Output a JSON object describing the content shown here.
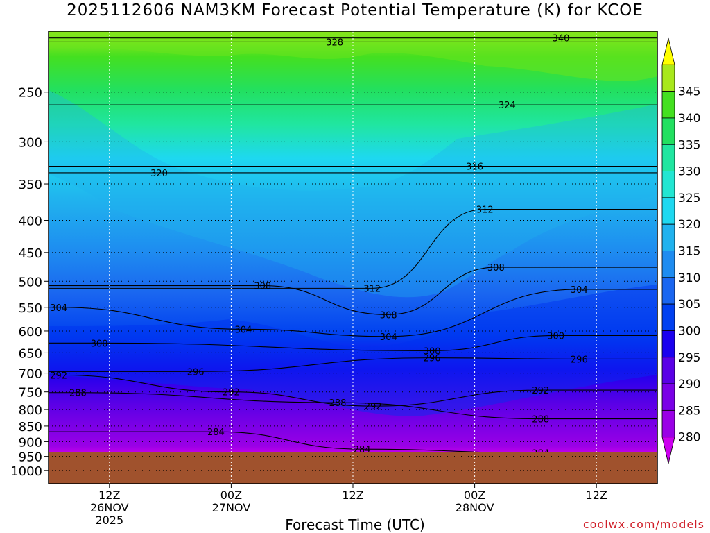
{
  "title": "2025112606 NAM3KM Forecast Potential Temperature (K) for KCOE",
  "credit": "coolwx.com/models",
  "chart_data": {
    "type": "heatmap",
    "title": "2025112606 NAM3KM Forecast Potential Temperature (K) for KCOE",
    "xlabel": "Forecast Time (UTC)",
    "ylabel": "",
    "x_range": [
      "2025-11-26 06Z",
      "2025-11-28 18Z"
    ],
    "x_ticks": [
      {
        "label": "12Z",
        "sub": [
          "26NOV",
          "2025"
        ],
        "hour": 6
      },
      {
        "label": "00Z",
        "sub": [
          "27NOV"
        ],
        "hour": 18
      },
      {
        "label": "12Z",
        "sub": [],
        "hour": 30
      },
      {
        "label": "00Z",
        "sub": [
          "28NOV"
        ],
        "hour": 42
      },
      {
        "label": "12Z",
        "sub": [],
        "hour": 54
      }
    ],
    "y_range": [
      1050,
      200
    ],
    "y_ticks": [
      250,
      300,
      350,
      400,
      450,
      500,
      550,
      600,
      650,
      700,
      750,
      800,
      850,
      900,
      950,
      1000
    ],
    "y_scale": "log-pressure",
    "ground_pressure": 950,
    "colorbar": {
      "ticks": [
        280,
        285,
        290,
        295,
        300,
        305,
        310,
        315,
        320,
        325,
        330,
        335,
        340,
        345
      ],
      "colors": [
        "#cc00ee",
        "#9a00e6",
        "#7a00e6",
        "#5a00e6",
        "#1a00ee",
        "#0040f0",
        "#1a66f0",
        "#1e8cf0",
        "#20b2ee",
        "#1ed8f0",
        "#22e6d2",
        "#20e6a0",
        "#22e060",
        "#44e020",
        "#a8e81c",
        "#ffff00"
      ]
    },
    "contour_labels": [
      {
        "value": "328",
        "hour": 28.2,
        "p": 208
      },
      {
        "value": "340",
        "hour": 50.5,
        "p": 205
      },
      {
        "value": "324",
        "hour": 45.2,
        "p": 262
      },
      {
        "value": "320",
        "hour": 10.9,
        "p": 336
      },
      {
        "value": "316",
        "hour": 42.0,
        "p": 328
      },
      {
        "value": "312",
        "hour": 43.0,
        "p": 384
      },
      {
        "value": "312",
        "hour": 31.9,
        "p": 513
      },
      {
        "value": "308",
        "hour": 21.1,
        "p": 508
      },
      {
        "value": "308",
        "hour": 44.1,
        "p": 475
      },
      {
        "value": "308",
        "hour": 33.5,
        "p": 565
      },
      {
        "value": "304",
        "hour": 1.0,
        "p": 550
      },
      {
        "value": "304",
        "hour": 19.2,
        "p": 596
      },
      {
        "value": "304",
        "hour": 33.5,
        "p": 612
      },
      {
        "value": "304",
        "hour": 52.3,
        "p": 515
      },
      {
        "value": "300",
        "hour": 5.0,
        "p": 627
      },
      {
        "value": "300",
        "hour": 37.8,
        "p": 645
      },
      {
        "value": "300",
        "hour": 50.0,
        "p": 610
      },
      {
        "value": "296",
        "hour": 14.5,
        "p": 696
      },
      {
        "value": "296",
        "hour": 37.8,
        "p": 662
      },
      {
        "value": "296",
        "hour": 52.3,
        "p": 665
      },
      {
        "value": "292",
        "hour": 1.0,
        "p": 705
      },
      {
        "value": "292",
        "hour": 18.0,
        "p": 750
      },
      {
        "value": "292",
        "hour": 32.0,
        "p": 790
      },
      {
        "value": "292",
        "hour": 48.5,
        "p": 745
      },
      {
        "value": "288",
        "hour": 2.9,
        "p": 752
      },
      {
        "value": "288",
        "hour": 28.5,
        "p": 780
      },
      {
        "value": "288",
        "hour": 48.5,
        "p": 828
      },
      {
        "value": "284",
        "hour": 16.5,
        "p": 868
      },
      {
        "value": "284",
        "hour": 30.9,
        "p": 925
      },
      {
        "value": "284",
        "hour": 48.5,
        "p": 938
      }
    ],
    "legend": "right"
  }
}
